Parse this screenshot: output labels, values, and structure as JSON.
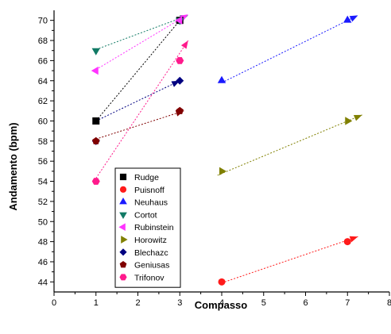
{
  "chart_data": {
    "type": "scatter",
    "title": "",
    "xlabel": "Compasso",
    "ylabel": "Andamento (bpm)",
    "xlim": [
      0,
      8
    ],
    "ylim": [
      43,
      71
    ],
    "xticks": [
      "0",
      "1",
      "2",
      "3",
      "4",
      "5",
      "6",
      "7",
      "8"
    ],
    "yticks": [
      "44",
      "46",
      "48",
      "50",
      "52",
      "54",
      "56",
      "58",
      "60",
      "62",
      "64",
      "66",
      "68",
      "70"
    ],
    "grid": false,
    "legend_position": "bottom-left inside",
    "series": [
      {
        "name": "Rudge",
        "marker": "square",
        "color": "#000000",
        "points": [
          [
            1,
            60
          ],
          [
            3,
            70
          ]
        ]
      },
      {
        "name": "Puisnoff",
        "marker": "circle",
        "color": "#ff1a1a",
        "points": [
          [
            4,
            44
          ],
          [
            7,
            48
          ]
        ]
      },
      {
        "name": "Neuhaus",
        "marker": "triangle-up",
        "color": "#1a1aff",
        "points": [
          [
            4,
            64
          ],
          [
            7,
            70
          ]
        ]
      },
      {
        "name": "Cortot",
        "marker": "triangle-down",
        "color": "#117a65",
        "points": [
          [
            1,
            67
          ],
          [
            3,
            70
          ]
        ]
      },
      {
        "name": "Rubinstein",
        "marker": "triangle-left",
        "color": "#ff33ff",
        "points": [
          [
            1,
            65
          ],
          [
            3,
            70
          ]
        ]
      },
      {
        "name": "Horowitz",
        "marker": "triangle-right",
        "color": "#808000",
        "points": [
          [
            4,
            55
          ],
          [
            7,
            60
          ]
        ]
      },
      {
        "name": "Blechazc",
        "marker": "diamond",
        "color": "#000080",
        "points": [
          [
            1,
            58
          ],
          [
            3,
            64
          ]
        ]
      },
      {
        "name": "Geniusas",
        "marker": "pentagon",
        "color": "#800000",
        "points": [
          [
            1,
            58
          ],
          [
            3,
            61
          ]
        ]
      },
      {
        "name": "Trifonov",
        "marker": "hexagon",
        "color": "#ff1a8c",
        "points": [
          [
            1,
            54
          ],
          [
            3,
            66
          ]
        ]
      }
    ],
    "trend_arrows": [
      {
        "series": "Rudge",
        "from": [
          1,
          60
        ],
        "to": [
          3.1,
          70.5
        ]
      },
      {
        "series": "Puisnoff",
        "from": [
          4,
          43.9
        ],
        "to": [
          7.25,
          48.5
        ]
      },
      {
        "series": "Neuhaus",
        "from": [
          4,
          63.8
        ],
        "to": [
          7.25,
          70.5
        ]
      },
      {
        "series": "Cortot",
        "from": [
          1,
          67.1
        ],
        "to": [
          3.2,
          70.5
        ]
      },
      {
        "series": "Rubinstein",
        "from": [
          1,
          65.1
        ],
        "to": [
          3.2,
          70.6
        ]
      },
      {
        "series": "Horowitz",
        "from": [
          3.9,
          54.6
        ],
        "to": [
          7.35,
          60.6
        ]
      },
      {
        "series": "Blechazc",
        "from": [
          1,
          60
        ],
        "to": [
          3,
          64
        ]
      },
      {
        "series": "Geniusas",
        "from": [
          1,
          58.2
        ],
        "to": [
          3.1,
          61
        ]
      },
      {
        "series": "Trifonov",
        "from": [
          1,
          54.3
        ],
        "to": [
          3.2,
          68
        ]
      }
    ]
  }
}
